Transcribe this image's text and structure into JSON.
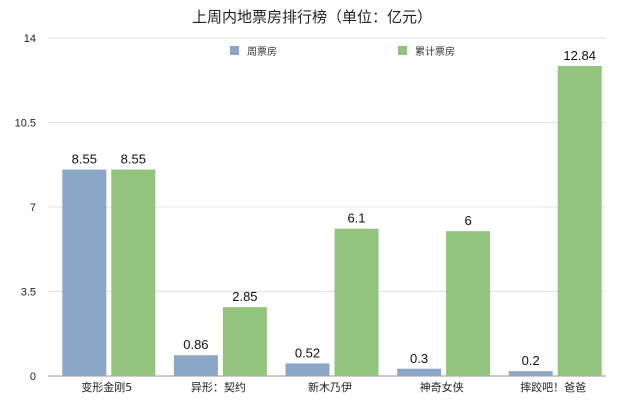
{
  "chart_data": {
    "type": "bar",
    "title": "上周内地票房排行榜（单位：亿元）",
    "xlabel": "",
    "ylabel": "",
    "ylim": [
      0,
      14
    ],
    "yticks": [
      0,
      3.5,
      7,
      10.5,
      14
    ],
    "grid": "horizontal",
    "legend_position": "top-center",
    "categories": [
      "变形金刚5",
      "异形：契约",
      "新木乃伊",
      "神奇女侠",
      "摔跤吧！爸爸"
    ],
    "series": [
      {
        "name": "周票房",
        "color": "#8ca6c8",
        "values": [
          8.55,
          0.86,
          0.52,
          0.3,
          0.2
        ]
      },
      {
        "name": "累计票房",
        "color": "#92c47d",
        "values": [
          8.55,
          2.85,
          6.1,
          6,
          12.84
        ]
      }
    ]
  }
}
